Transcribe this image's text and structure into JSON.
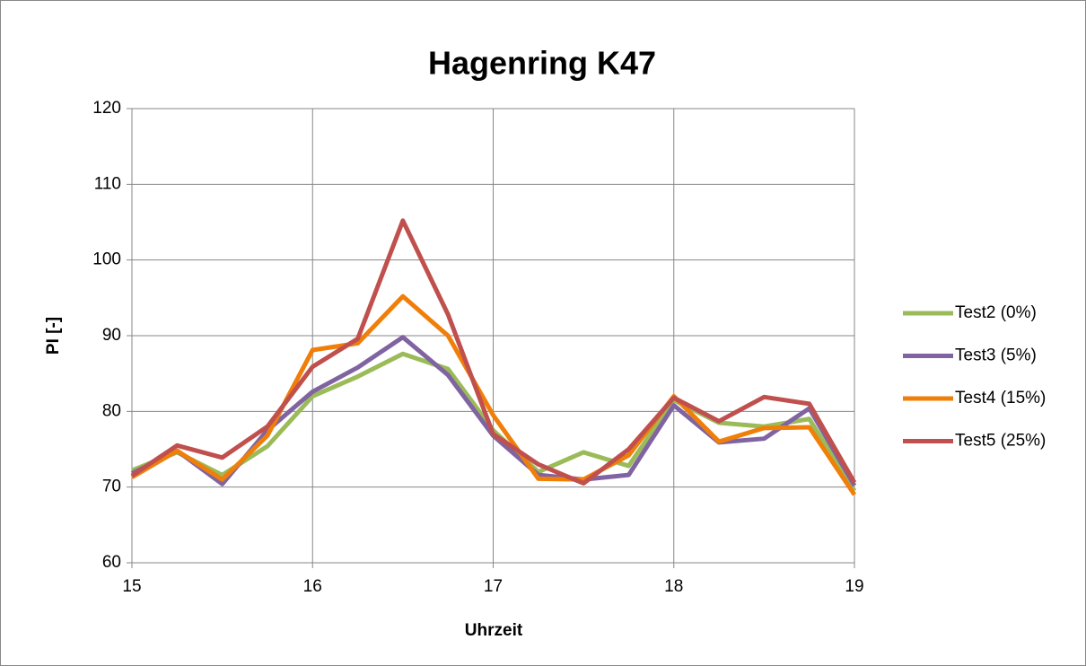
{
  "chart_data": {
    "type": "line",
    "title": "Hagenring K47",
    "xlabel": "Uhrzeit",
    "ylabel": "PI [-]",
    "x": [
      15,
      15.25,
      15.5,
      15.75,
      16,
      16.25,
      16.5,
      16.75,
      17,
      17.25,
      17.5,
      17.75,
      18,
      18.25,
      18.5,
      18.75,
      19
    ],
    "series": [
      {
        "name": "Test2 (0%)",
        "color": "#9bbb59",
        "values": [
          72.2,
          74.6,
          71.6,
          75.4,
          82,
          84.6,
          87.6,
          85.6,
          77.5,
          72,
          74.6,
          72.8,
          81.5,
          78.5,
          78,
          79,
          69.5
        ]
      },
      {
        "name": "Test3 (5%)",
        "color": "#8064a2",
        "values": [
          71.8,
          74.8,
          70.4,
          77.5,
          82.6,
          85.8,
          89.8,
          84.8,
          76.8,
          71.6,
          71,
          71.6,
          80.8,
          75.9,
          76.4,
          80.4,
          70.2
        ]
      },
      {
        "name": "Test4 (15%)",
        "color": "#f07f09",
        "values": [
          71.3,
          74.8,
          71,
          76.8,
          88.1,
          89,
          95.2,
          90,
          79.5,
          71.1,
          71,
          74.2,
          82,
          76,
          77.8,
          77.9,
          69
        ]
      },
      {
        "name": "Test5 (25%)",
        "color": "#c0504d",
        "values": [
          71.5,
          75.5,
          73.9,
          78,
          85.9,
          89.6,
          105.2,
          92.8,
          77,
          73,
          70.5,
          75,
          81.8,
          78.7,
          81.9,
          81,
          70.6
        ]
      }
    ],
    "xlim": [
      15,
      19
    ],
    "xticks": [
      15,
      16,
      17,
      18,
      19
    ],
    "ylim": [
      60,
      120
    ],
    "yticks": [
      60,
      70,
      80,
      90,
      100,
      110,
      120
    ],
    "grid": true,
    "legend": "right"
  }
}
